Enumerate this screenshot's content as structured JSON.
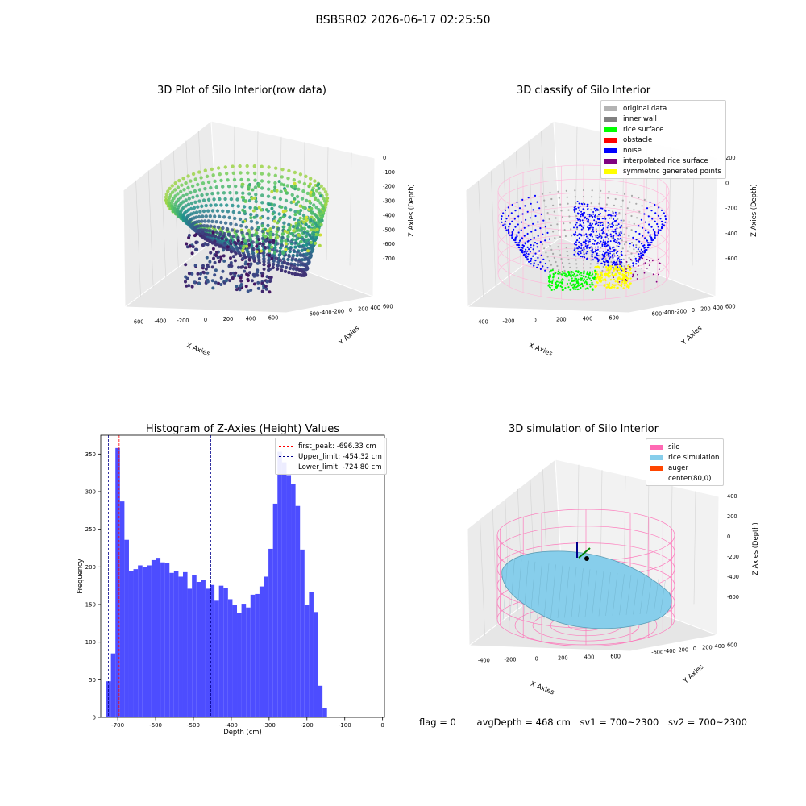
{
  "suptitle": "BSBSR02 2026-06-17 02:25:50",
  "footer": {
    "flag": "flag = 0",
    "avg_depth": "avgDepth = 468 cm",
    "sv1": "sv1 = 700~2300",
    "sv2": "sv2 = 700~2300"
  },
  "chart_data": [
    {
      "type": "scatter",
      "projection": "3d",
      "title": "3D Plot of Silo Interior(row data)",
      "xlabel": "X Axies",
      "ylabel": "Y Axies",
      "zlabel": "Z Axies (Depth)",
      "xticks": [
        -600,
        -400,
        -200,
        0,
        200,
        400,
        600
      ],
      "yticks": [
        -600,
        -400,
        -200,
        0,
        200,
        400,
        600
      ],
      "zticks": [
        0,
        -100,
        -200,
        -300,
        -400,
        -500,
        -600,
        -700
      ],
      "colormap": "viridis"
    },
    {
      "type": "scatter",
      "projection": "3d",
      "title": "3D classify of Silo Interior",
      "zlabel": "Z Axies (Depth)",
      "xlabel": "X Axies",
      "ylabel": "Y Axies",
      "xticks": [
        -400,
        -200,
        0,
        200,
        400,
        600
      ],
      "yticks": [
        -600,
        -400,
        -200,
        0,
        200,
        400,
        600
      ],
      "zticks": [
        200,
        0,
        -200,
        -400,
        -600
      ],
      "legend_placement": "top-right",
      "legend": [
        {
          "label": "original data",
          "color": "#b3b3b3"
        },
        {
          "label": "inner wall",
          "color": "#808080"
        },
        {
          "label": "rice surface",
          "color": "#00ff00"
        },
        {
          "label": "obstacle",
          "color": "#ff0000"
        },
        {
          "label": "noise",
          "color": "#0000ff"
        },
        {
          "label": "interpolated rice surface",
          "color": "#800080"
        },
        {
          "label": "symmetric generated points",
          "color": "#ffff00"
        }
      ]
    },
    {
      "type": "bar",
      "title": "Histogram of Z-Axies (Height) Values",
      "xlabel": "Depth (cm)",
      "ylabel": "Frequency",
      "xlim": [
        -745,
        5
      ],
      "ylim": [
        0,
        375
      ],
      "xticks": [
        -700,
        -600,
        -500,
        -400,
        -300,
        -200,
        -100,
        0
      ],
      "yticks": [
        0,
        50,
        100,
        150,
        200,
        250,
        300,
        350
      ],
      "bin_start": -730,
      "bin_width": 11.9,
      "bar_color": "#4d4dff",
      "values": [
        48,
        85,
        358,
        287,
        236,
        194,
        197,
        202,
        200,
        202,
        209,
        212,
        206,
        205,
        192,
        195,
        187,
        193,
        171,
        189,
        180,
        183,
        171,
        176,
        155,
        175,
        172,
        157,
        150,
        139,
        151,
        146,
        163,
        164,
        174,
        187,
        224,
        284,
        353,
        339,
        322,
        310,
        281,
        223,
        149,
        167,
        140,
        42,
        12
      ],
      "lines": [
        {
          "label": "first_peak: -696.33 cm",
          "x": -696.33,
          "color": "#ff0000"
        },
        {
          "label": "Upper_limit: -454.32 cm",
          "x": -454.32,
          "color": "#00008b"
        },
        {
          "label": "Lower_limit: -724.80 cm",
          "x": -724.8,
          "color": "#00008b"
        }
      ],
      "legend_placement": "top-right"
    },
    {
      "type": "surface",
      "projection": "3d",
      "title": "3D simulation of Silo Interior",
      "zlabel": "Z Axies (Depth)",
      "xlabel": "X Axies",
      "ylabel": "Y Axies",
      "xticks": [
        -400,
        -200,
        0,
        200,
        400,
        600
      ],
      "yticks": [
        -600,
        -400,
        -200,
        0,
        200,
        400,
        600
      ],
      "zticks": [
        400,
        200,
        0,
        -200,
        -400,
        -600
      ],
      "legend_placement": "top-right",
      "legend": [
        {
          "label": "silo",
          "color": "#ff69b4"
        },
        {
          "label": "rice simulation",
          "color": "#87ceeb"
        },
        {
          "label": "auger",
          "color": "#ff4500"
        },
        {
          "label": "center(80,0)",
          "color": "#ffffff"
        }
      ]
    }
  ]
}
